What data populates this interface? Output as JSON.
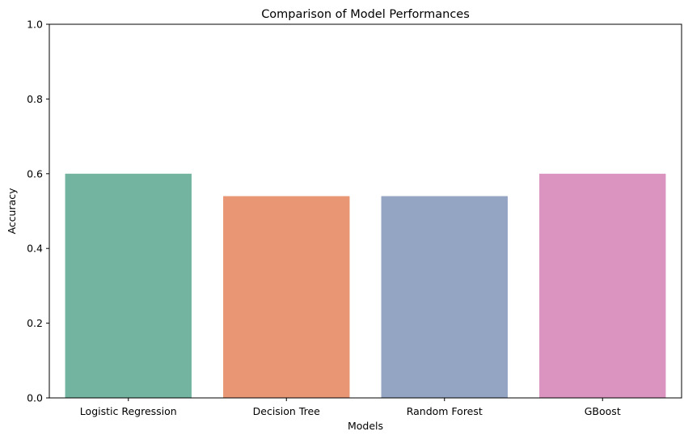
{
  "chart_data": {
    "type": "bar",
    "title": "Comparison of Model Performances",
    "xlabel": "Models",
    "ylabel": "Accuracy",
    "categories": [
      "Logistic Regression",
      "Decision Tree",
      "Random Forest",
      "GBoost"
    ],
    "values": [
      0.6,
      0.54,
      0.54,
      0.6
    ],
    "ylim": [
      0,
      1.0
    ],
    "yticks": [
      "0.0",
      "0.2",
      "0.4",
      "0.6",
      "0.8",
      "1.0"
    ],
    "colors": [
      "#72b49f",
      "#e89674",
      "#94a4c3",
      "#db93bf"
    ],
    "grid": false,
    "legend": "none"
  }
}
